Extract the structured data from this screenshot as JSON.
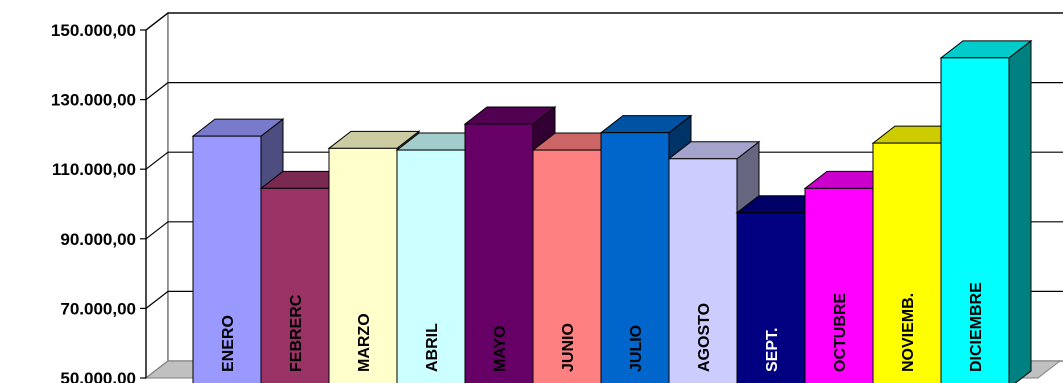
{
  "chart_data": {
    "type": "bar",
    "categories": [
      "ENERO",
      "FEBRERC",
      "MARZO",
      "ABRIL",
      "MAYO",
      "JUNIO",
      "JULIO",
      "AGOSTO",
      "SEPT.",
      "OCTUBRE",
      "NOVIEMB.",
      "DICIEMBRE"
    ],
    "values": [
      119500,
      104500,
      116000,
      115500,
      123000,
      115500,
      120500,
      113000,
      97500,
      104500,
      117500,
      142000
    ],
    "colors": [
      "#9999ff",
      "#993366",
      "#ffffcc",
      "#ccffff",
      "#660066",
      "#ff8080",
      "#0066cc",
      "#ccccff",
      "#000080",
      "#ff00ff",
      "#ffff00",
      "#00ffff"
    ],
    "label_colors": [
      "#000000",
      "#000000",
      "#000000",
      "#000000",
      "#000000",
      "#000000",
      "#000000",
      "#000000",
      "#ffffff",
      "#000000",
      "#000000",
      "#000000"
    ],
    "ylim": [
      50000,
      150000
    ],
    "y_ticks": [
      "150.000,00",
      "130.000,00",
      "110.000,00",
      "90.000,00",
      "70.000,00",
      "50.000,00"
    ],
    "y_tick_values": [
      150000,
      130000,
      110000,
      90000,
      70000,
      50000
    ],
    "grid": true,
    "style": "3d-column",
    "title": "",
    "xlabel": "",
    "ylabel": ""
  }
}
